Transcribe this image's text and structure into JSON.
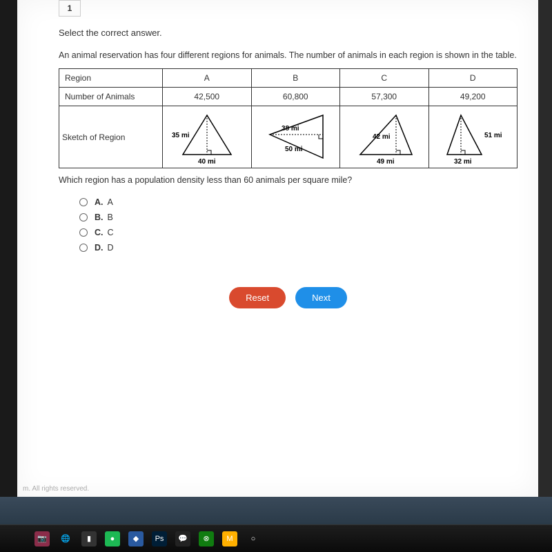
{
  "qnum": "1",
  "instruction": "Select the correct answer.",
  "problem": "An animal reservation has four different regions for animals. The number of animals in each region is shown in the table.",
  "table": {
    "headers": [
      "Region",
      "A",
      "B",
      "C",
      "D"
    ],
    "animals_row_label": "Number of Animals",
    "animals": [
      "42,500",
      "60,800",
      "57,300",
      "49,200"
    ],
    "sketch_row_label": "Sketch of Region",
    "sketches": {
      "A": {
        "height_label": "35 mi",
        "base_label": "40 mi",
        "stroke": "#000000"
      },
      "B": {
        "height_label": "38 mi",
        "base_label": "50 mi",
        "stroke": "#000000"
      },
      "C": {
        "height_label": "42 mi",
        "base_label": "49 mi",
        "stroke": "#000000"
      },
      "D": {
        "height_label": "51 mi",
        "base_label": "32 mi",
        "stroke": "#000000"
      }
    }
  },
  "question": "Which region has a population density less than 60 animals per square mile?",
  "options": [
    {
      "letter": "A.",
      "text": "A"
    },
    {
      "letter": "B.",
      "text": "B"
    },
    {
      "letter": "C.",
      "text": "C"
    },
    {
      "letter": "D.",
      "text": "D"
    }
  ],
  "buttons": {
    "reset": {
      "label": "Reset",
      "color": "#d94a2e"
    },
    "next": {
      "label": "Next",
      "color": "#1f8fe8"
    }
  },
  "footer": "m. All rights reserved.",
  "taskbar_icons": [
    {
      "name": "camera-icon",
      "bg": "#8b2d4a",
      "glyph": "📷"
    },
    {
      "name": "chrome-icon",
      "bg": "transparent",
      "glyph": "🌐"
    },
    {
      "name": "app-icon",
      "bg": "#333333",
      "glyph": "▮"
    },
    {
      "name": "spotify-icon",
      "bg": "#1db954",
      "glyph": "●"
    },
    {
      "name": "shield-icon",
      "bg": "#2a5aa0",
      "glyph": "◆"
    },
    {
      "name": "ps-icon",
      "bg": "#001e36",
      "glyph": "Ps"
    },
    {
      "name": "msg-icon",
      "bg": "#222222",
      "glyph": "💬"
    },
    {
      "name": "xbox-icon",
      "bg": "#107c10",
      "glyph": "⊗"
    },
    {
      "name": "m-icon",
      "bg": "#ffb000",
      "glyph": "M"
    },
    {
      "name": "cortana-icon",
      "bg": "transparent",
      "glyph": "○"
    }
  ]
}
